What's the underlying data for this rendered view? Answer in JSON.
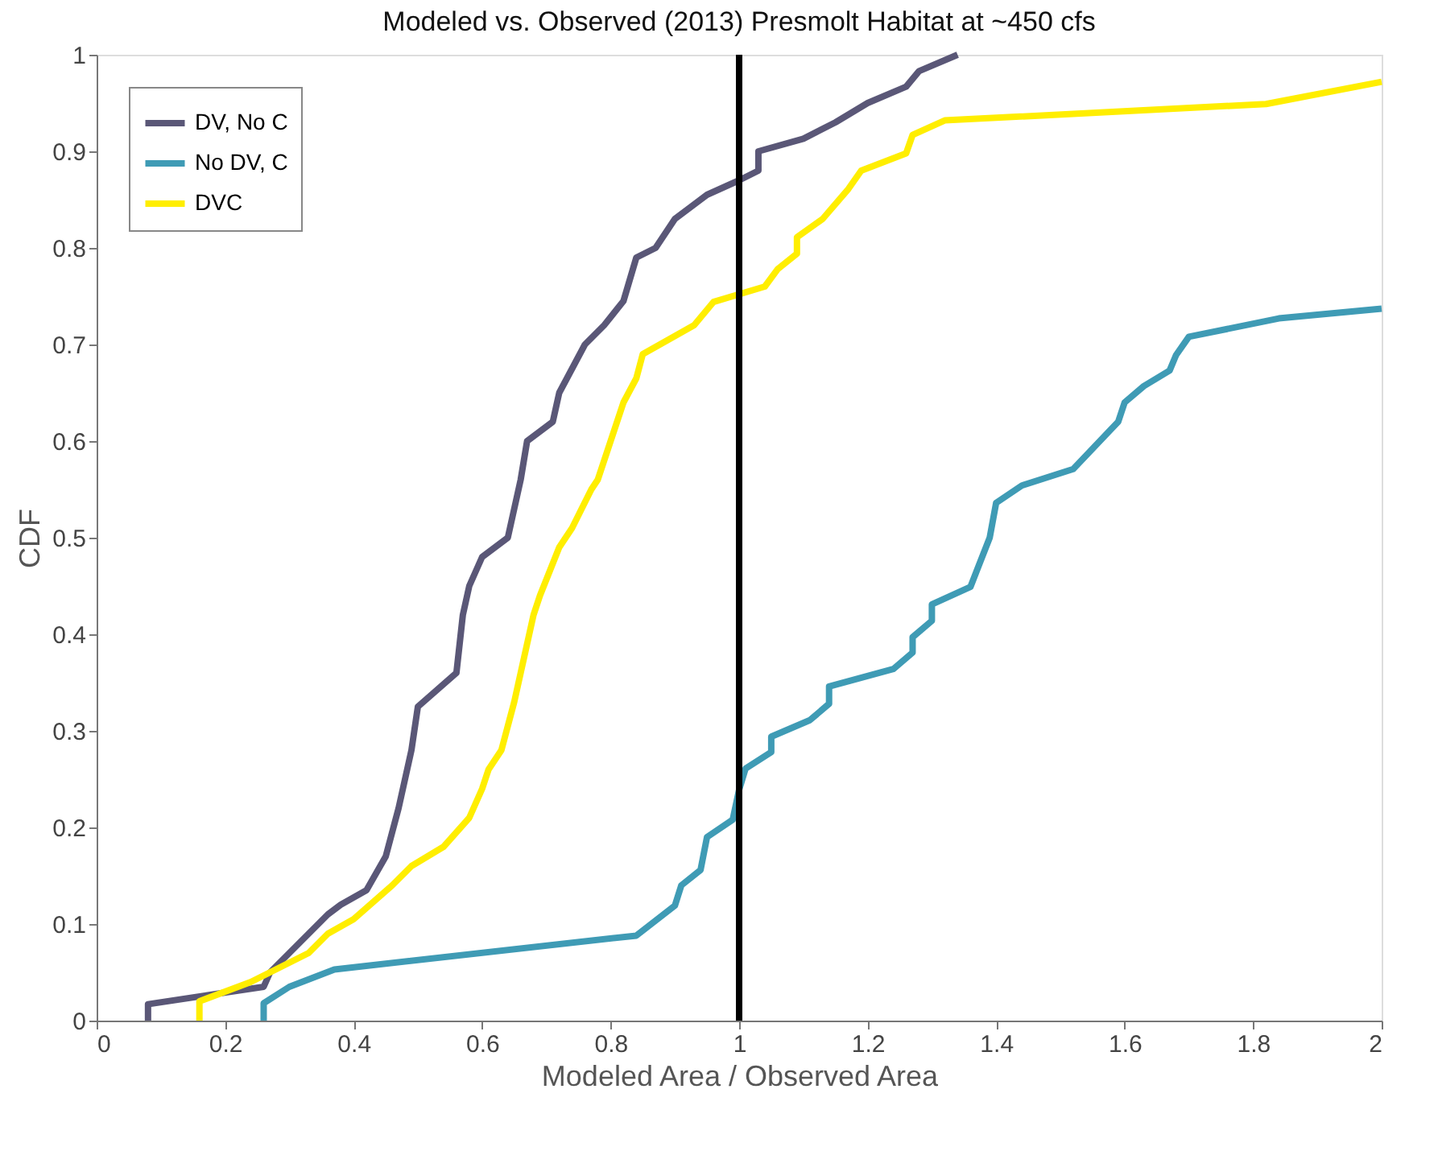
{
  "chart_data": {
    "type": "line",
    "title": "Modeled vs. Observed (2013) Presmolt Habitat at ~450 cfs",
    "xlabel": "Modeled Area / Observed Area",
    "ylabel": "CDF",
    "xlim": [
      0,
      2
    ],
    "ylim": [
      0,
      1
    ],
    "xticks": [
      0,
      0.2,
      0.4,
      0.6,
      0.8,
      1,
      1.2,
      1.4,
      1.6,
      1.8,
      2
    ],
    "yticks": [
      0,
      0.1,
      0.2,
      0.3,
      0.4,
      0.5,
      0.6,
      0.7,
      0.8,
      0.9,
      1
    ],
    "grid": false,
    "legend": "top left",
    "line_style": "solid",
    "marker": "none",
    "series": [
      {
        "name": "DV, No C",
        "color": "#5a5777",
        "x": [
          0.08,
          0.08,
          0.26,
          0.27,
          0.3,
          0.36,
          0.38,
          0.42,
          0.45,
          0.47,
          0.49,
          0.5,
          0.56,
          0.57,
          0.58,
          0.6,
          0.64,
          0.66,
          0.67,
          0.71,
          0.72,
          0.76,
          0.79,
          0.82,
          0.84,
          0.87,
          0.9,
          0.95,
          1.0,
          1.03,
          1.03,
          1.1,
          1.15,
          1.2,
          1.26,
          1.28,
          1.34
        ],
        "values": [
          0,
          0.017,
          0.035,
          0.05,
          0.07,
          0.11,
          0.12,
          0.135,
          0.17,
          0.22,
          0.28,
          0.325,
          0.36,
          0.42,
          0.45,
          0.48,
          0.5,
          0.56,
          0.6,
          0.62,
          0.65,
          0.7,
          0.72,
          0.745,
          0.79,
          0.8,
          0.83,
          0.855,
          0.87,
          0.88,
          0.9,
          0.913,
          0.93,
          0.95,
          0.967,
          0.983,
          1.0
        ]
      },
      {
        "name": "No DV, C",
        "color": "#3f9bb5",
        "x": [
          0.26,
          0.26,
          0.3,
          0.37,
          0.84,
          0.9,
          0.91,
          0.94,
          0.95,
          0.99,
          1.0,
          1.01,
          1.05,
          1.05,
          1.11,
          1.14,
          1.14,
          1.24,
          1.27,
          1.27,
          1.3,
          1.3,
          1.36,
          1.37,
          1.39,
          1.4,
          1.44,
          1.52,
          1.57,
          1.59,
          1.6,
          1.63,
          1.67,
          1.68,
          1.7,
          1.84,
          2.0
        ],
        "values": [
          0,
          0.018,
          0.035,
          0.053,
          0.088,
          0.119,
          0.14,
          0.156,
          0.19,
          0.208,
          0.239,
          0.261,
          0.278,
          0.294,
          0.311,
          0.328,
          0.346,
          0.364,
          0.381,
          0.397,
          0.414,
          0.431,
          0.449,
          0.466,
          0.5,
          0.536,
          0.554,
          0.571,
          0.606,
          0.62,
          0.64,
          0.657,
          0.673,
          0.689,
          0.708,
          0.727,
          0.737
        ]
      },
      {
        "name": "DVC",
        "color": "#ffee00",
        "x": [
          0.16,
          0.16,
          0.24,
          0.33,
          0.36,
          0.4,
          0.46,
          0.49,
          0.54,
          0.58,
          0.6,
          0.61,
          0.63,
          0.65,
          0.66,
          0.68,
          0.69,
          0.72,
          0.74,
          0.77,
          0.78,
          0.8,
          0.82,
          0.84,
          0.85,
          0.93,
          0.96,
          1.04,
          1.06,
          1.09,
          1.09,
          1.13,
          1.17,
          1.19,
          1.26,
          1.27,
          1.32,
          1.82,
          2.0
        ],
        "values": [
          0,
          0.02,
          0.04,
          0.07,
          0.09,
          0.105,
          0.14,
          0.16,
          0.18,
          0.21,
          0.24,
          0.26,
          0.28,
          0.33,
          0.36,
          0.42,
          0.44,
          0.49,
          0.51,
          0.55,
          0.56,
          0.6,
          0.64,
          0.665,
          0.69,
          0.72,
          0.744,
          0.76,
          0.778,
          0.794,
          0.811,
          0.83,
          0.861,
          0.88,
          0.898,
          0.917,
          0.932,
          0.949,
          0.972
        ]
      }
    ],
    "ref_lines": [
      {
        "axis": "x",
        "value": 1,
        "color": "#000000",
        "line_style": "solid"
      }
    ]
  }
}
